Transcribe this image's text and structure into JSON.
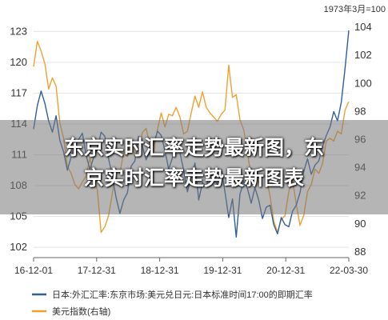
{
  "chart_data": {
    "type": "line",
    "note": "1973年3月=100",
    "x_ticks": [
      "16-12-01",
      "17-12-31",
      "18-12-31",
      "19-12-31",
      "20-12-31",
      "22-03-30"
    ],
    "left_axis": {
      "ticks": [
        102,
        105,
        108,
        111,
        114,
        117,
        120,
        123
      ],
      "range": [
        101,
        124.5
      ]
    },
    "right_axis": {
      "ticks": [
        88,
        90,
        92,
        94,
        96,
        98,
        100,
        102,
        104
      ],
      "range": [
        87.6,
        104.8
      ]
    },
    "series": [
      {
        "name": "日本:外汇汇率:东京市场:美元兑日元:日本标准时间17:00的即期汇率",
        "axis": "left",
        "color": "#2e5f9e",
        "values": [
          113.5,
          115.8,
          117.2,
          116.0,
          114.3,
          113.2,
          114.8,
          112.4,
          111.3,
          109.5,
          110.8,
          111.9,
          112.5,
          113.1,
          110.9,
          109.6,
          110.7,
          111.6,
          113.2,
          112.8,
          110.6,
          108.9,
          106.8,
          105.3,
          106.6,
          107.3,
          109.9,
          110.4,
          112.8,
          111.8,
          110.5,
          111.6,
          112.0,
          113.3,
          112.9,
          111.4,
          109.6,
          110.7,
          112.6,
          111.2,
          109.5,
          107.4,
          108.9,
          110.2,
          106.6,
          108.3,
          107.9,
          109.4,
          108.7,
          108.1,
          109.6,
          107.4,
          104.9,
          106.7,
          103.0,
          107.2,
          108.4,
          107.7,
          106.3,
          107.8,
          106.6,
          104.8,
          105.9,
          106.1,
          104.2,
          103.3,
          104.9,
          104.2,
          104.0,
          105.5,
          106.1,
          107.3,
          109.4,
          110.6,
          109.1,
          110.0,
          110.4,
          111.8,
          112.9,
          113.7,
          115.2,
          114.3,
          116.1,
          119.4,
          123.1
        ]
      },
      {
        "name": "美元指数(右轴)",
        "axis": "right",
        "color": "#f0a030",
        "values": [
          101.2,
          103.0,
          102.3,
          101.4,
          99.6,
          100.4,
          99.8,
          97.2,
          96.1,
          94.1,
          93.6,
          92.8,
          92.5,
          93.0,
          93.4,
          94.7,
          93.3,
          92.4,
          89.4,
          89.8,
          90.6,
          92.2,
          93.9,
          93.6,
          95.1,
          94.8,
          96.0,
          94.8,
          95.3,
          96.5,
          96.8,
          95.6,
          95.2,
          96.7,
          97.9,
          96.9,
          97.8,
          97.7,
          98.3,
          97.6,
          96.4,
          96.6,
          97.9,
          99.1,
          98.3,
          99.4,
          98.3,
          97.9,
          97.6,
          97.3,
          97.8,
          98.1,
          101.3,
          99.0,
          99.2,
          97.4,
          96.7,
          95.0,
          93.4,
          93.8,
          92.9,
          93.5,
          93.3,
          92.0,
          90.2,
          89.4,
          90.3,
          90.6,
          92.3,
          93.2,
          91.4,
          89.9,
          90.6,
          92.3,
          92.8,
          93.9,
          93.6,
          94.3,
          95.9,
          96.1,
          95.9,
          96.6,
          96.4,
          98.1,
          98.7
        ]
      }
    ]
  },
  "overlay": {
    "line1": "东京实时汇率走势最新图，东",
    "line2": "京实时汇率走势最新图表"
  }
}
